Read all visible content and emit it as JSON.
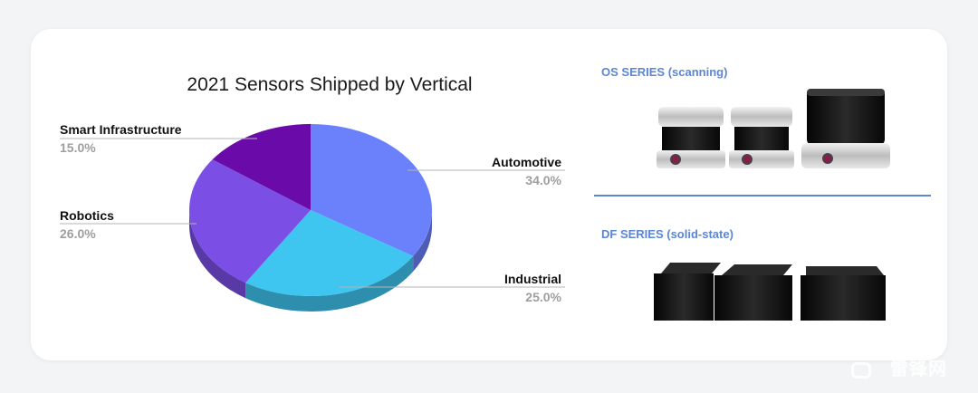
{
  "chart_data": {
    "type": "pie",
    "title": "2021 Sensors Shipped by Vertical",
    "slices": [
      {
        "label": "Automotive",
        "value": 34.0,
        "display": "34.0%",
        "color": "#6b80fb"
      },
      {
        "label": "Industrial",
        "value": 25.0,
        "display": "25.0%",
        "color": "#3ec5f0"
      },
      {
        "label": "Robotics",
        "value": 26.0,
        "display": "26.0%",
        "color": "#7b4fe6"
      },
      {
        "label": "Smart Infrastructure",
        "value": 15.0,
        "display": "15.0%",
        "color": "#6a0aa9"
      }
    ]
  },
  "products": {
    "os_title": "OS SERIES (scanning)",
    "df_title": "DF SERIES (solid-state)"
  },
  "watermark": "雷锋网",
  "colors": {
    "accent": "#5b86d6"
  }
}
